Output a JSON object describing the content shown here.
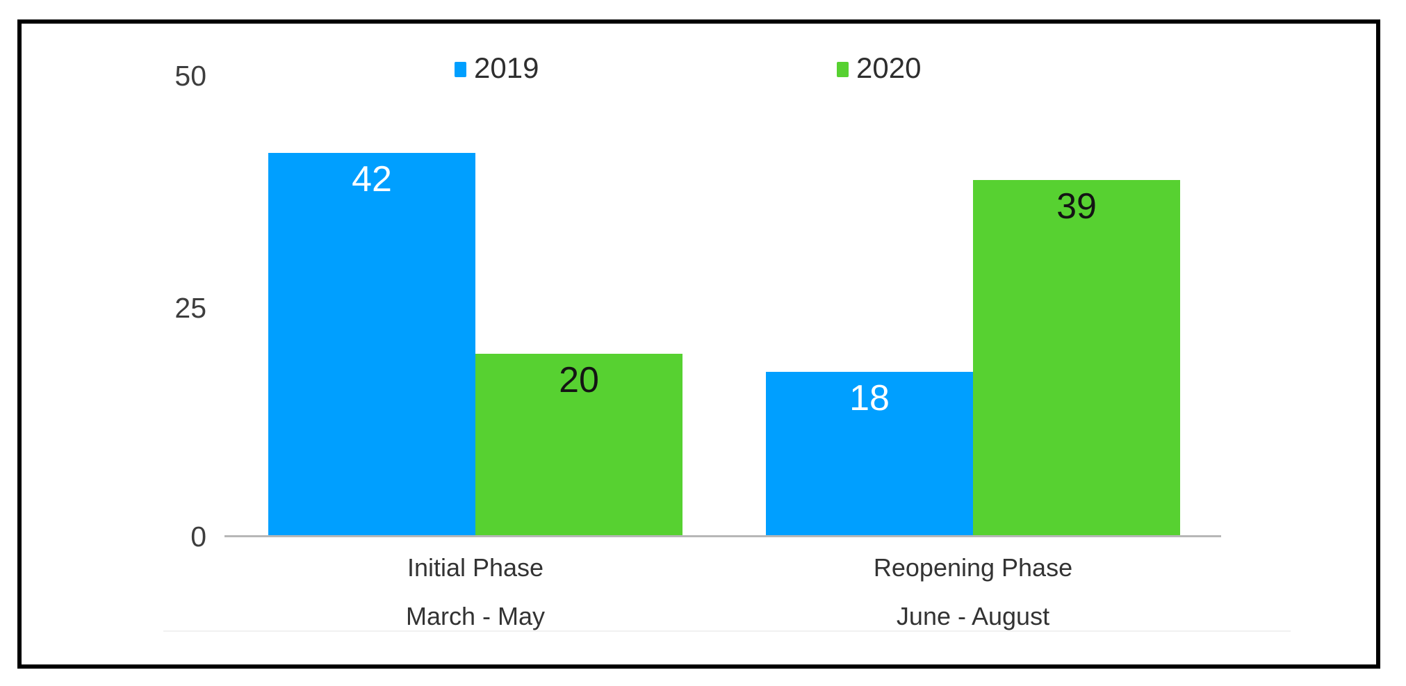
{
  "chart_data": {
    "type": "bar",
    "title": "",
    "xlabel": "",
    "ylabel": "",
    "categories": [
      {
        "label": "Initial Phase",
        "sublabel": "March - May"
      },
      {
        "label": "Reopening Phase",
        "sublabel": "June - August"
      }
    ],
    "series": [
      {
        "name": "2019",
        "color": "#009FFF",
        "value_label_color": "#FFFFFF",
        "values": [
          42,
          18
        ]
      },
      {
        "name": "2020",
        "color": "#57D131",
        "value_label_color": "#141414",
        "values": [
          20,
          39
        ]
      }
    ],
    "y_axis": {
      "tick_labels": [
        "0",
        "25",
        "50"
      ],
      "range": [
        0,
        50
      ]
    },
    "legend": {
      "position": "top",
      "entries": [
        "2019",
        "2020"
      ]
    },
    "grid": false
  },
  "colors": {
    "frame_border": "#000000",
    "background": "#FFFFFF",
    "axis_line": "#B7B7B7",
    "tick_label": "#3D3D3D",
    "category_label": "#333333"
  }
}
